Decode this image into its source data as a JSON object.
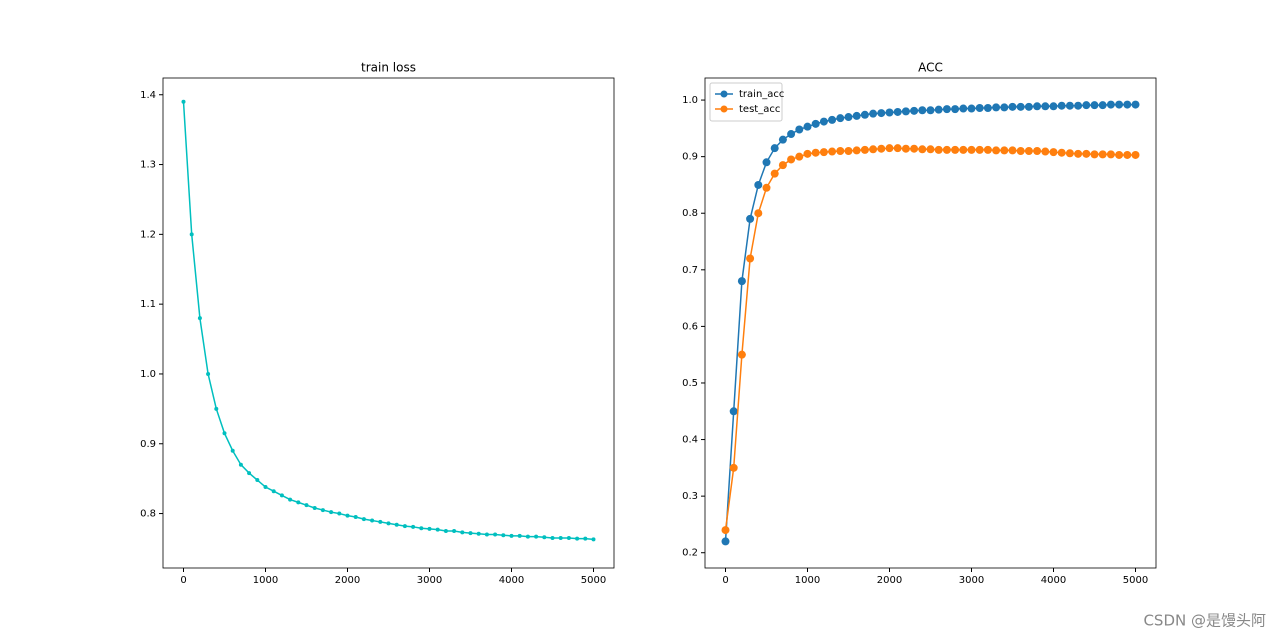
{
  "chart_data": [
    {
      "type": "line",
      "title": "train loss",
      "color": "#00bfbf",
      "marker_size": 2,
      "x": [
        0,
        100,
        200,
        300,
        400,
        500,
        600,
        700,
        800,
        900,
        1000,
        1100,
        1200,
        1300,
        1400,
        1500,
        1600,
        1700,
        1800,
        1900,
        2000,
        2100,
        2200,
        2300,
        2400,
        2500,
        2600,
        2700,
        2800,
        2900,
        3000,
        3100,
        3200,
        3300,
        3400,
        3500,
        3600,
        3700,
        3800,
        3900,
        4000,
        4100,
        4200,
        4300,
        4400,
        4500,
        4600,
        4700,
        4800,
        4900,
        5000
      ],
      "values": [
        1.39,
        1.2,
        1.08,
        1.0,
        0.95,
        0.915,
        0.89,
        0.87,
        0.858,
        0.848,
        0.838,
        0.832,
        0.826,
        0.82,
        0.816,
        0.812,
        0.808,
        0.805,
        0.802,
        0.8,
        0.797,
        0.795,
        0.792,
        0.79,
        0.788,
        0.786,
        0.784,
        0.782,
        0.781,
        0.779,
        0.778,
        0.777,
        0.775,
        0.775,
        0.773,
        0.772,
        0.771,
        0.77,
        0.77,
        0.769,
        0.768,
        0.768,
        0.767,
        0.767,
        0.766,
        0.765,
        0.765,
        0.765,
        0.764,
        0.764,
        0.763
      ],
      "xlim": [
        -250,
        5250
      ],
      "xticks": [
        0,
        1000,
        2000,
        3000,
        4000,
        5000
      ],
      "ylim": [
        0.722,
        1.424
      ],
      "yticks": [
        0.8,
        0.9,
        {
          "value": 1,
          "label": "1.0"
        },
        1.1,
        1.2,
        1.3,
        1.4
      ]
    },
    {
      "type": "line",
      "title": "ACC",
      "legend": "upper left",
      "marker_size": 4,
      "x": [
        0,
        100,
        200,
        300,
        400,
        500,
        600,
        700,
        800,
        900,
        1000,
        1100,
        1200,
        1300,
        1400,
        1500,
        1600,
        1700,
        1800,
        1900,
        2000,
        2100,
        2200,
        2300,
        2400,
        2500,
        2600,
        2700,
        2800,
        2900,
        3000,
        3100,
        3200,
        3300,
        3400,
        3500,
        3600,
        3700,
        3800,
        3900,
        4000,
        4100,
        4200,
        4300,
        4400,
        4500,
        4600,
        4700,
        4800,
        4900,
        5000
      ],
      "series": [
        {
          "name": "train_acc",
          "color": "#1f77b4",
          "values": [
            0.22,
            0.45,
            0.68,
            0.79,
            0.85,
            0.89,
            0.915,
            0.93,
            0.94,
            0.948,
            0.953,
            0.958,
            0.962,
            0.965,
            0.968,
            0.97,
            0.972,
            0.974,
            0.976,
            0.977,
            0.978,
            0.979,
            0.98,
            0.981,
            0.982,
            0.982,
            0.983,
            0.984,
            0.984,
            0.985,
            0.985,
            0.986,
            0.986,
            0.987,
            0.987,
            0.988,
            0.988,
            0.988,
            0.989,
            0.989,
            0.989,
            0.99,
            0.99,
            0.99,
            0.991,
            0.991,
            0.991,
            0.992,
            0.992,
            0.992,
            0.992
          ]
        },
        {
          "name": "test_acc",
          "color": "#ff7f0e",
          "values": [
            0.24,
            0.35,
            0.55,
            0.72,
            0.8,
            0.845,
            0.87,
            0.885,
            0.895,
            0.9,
            0.905,
            0.907,
            0.908,
            0.909,
            0.91,
            0.91,
            0.911,
            0.912,
            0.913,
            0.914,
            0.915,
            0.915,
            0.914,
            0.914,
            0.913,
            0.913,
            0.912,
            0.912,
            0.912,
            0.912,
            0.912,
            0.912,
            0.912,
            0.911,
            0.911,
            0.911,
            0.91,
            0.91,
            0.91,
            0.909,
            0.908,
            0.907,
            0.906,
            0.905,
            0.905,
            0.904,
            0.904,
            0.904,
            0.903,
            0.903,
            0.903
          ]
        }
      ],
      "xlim": [
        -250,
        5250
      ],
      "xticks": [
        0,
        1000,
        2000,
        3000,
        4000,
        5000
      ],
      "ylim": [
        0.173,
        1.039
      ],
      "yticks": [
        0.2,
        0.3,
        0.4,
        0.5,
        0.6,
        0.7,
        0.8,
        0.9,
        {
          "value": 1,
          "label": "1.0"
        }
      ]
    }
  ],
  "watermark": "CSDN @是馒头阿"
}
